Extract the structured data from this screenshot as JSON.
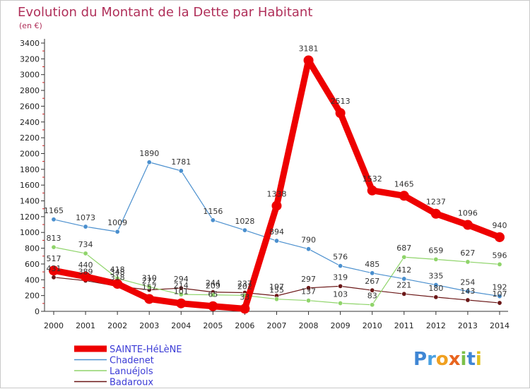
{
  "chart_data": {
    "type": "line",
    "title": "Evolution du Montant de la Dette par Habitant",
    "subtitle": "(en €)",
    "xlabel": "",
    "ylabel": "",
    "x": [
      "2000",
      "2001",
      "2002",
      "2003",
      "2004",
      "2005",
      "2006",
      "2007",
      "2008",
      "2009",
      "2010",
      "2011",
      "2012",
      "2013",
      "2014"
    ],
    "ylim": [
      0,
      3400
    ],
    "yticks": [
      0,
      200,
      400,
      600,
      800,
      1000,
      1200,
      1400,
      1600,
      1800,
      2000,
      2200,
      2400,
      2600,
      2800,
      3000,
      3200,
      3400
    ],
    "grid": false,
    "legend_position": "bottom-left",
    "series": [
      {
        "name": "SAINTE-HéLèNE",
        "color": "#ee0000",
        "values": [
          517,
          440,
          348,
          157,
          101,
          65,
          33,
          1338,
          3181,
          2513,
          1532,
          1465,
          1237,
          1096,
          940
        ]
      },
      {
        "name": "Chadenet",
        "color": "#4a8fce",
        "values": [
          1165,
          1073,
          1009,
          1890,
          1781,
          1156,
          1028,
          894,
          790,
          576,
          485,
          412,
          335,
          254,
          192
        ]
      },
      {
        "name": "Lanuéjols",
        "color": "#8fd46a",
        "values": [
          813,
          734,
          418,
          310,
          214,
          209,
          202,
          155,
          137,
          103,
          83,
          687,
          659,
          627,
          596
        ]
      },
      {
        "name": "Badaroux",
        "color": "#6b1717",
        "values": [
          431,
          389,
          318,
          272,
          294,
          244,
          237,
          197,
          297,
          319,
          267,
          221,
          180,
          143,
          107
        ]
      }
    ]
  },
  "watermark": {
    "letters": [
      "P",
      "r",
      "o",
      "x",
      "i",
      "t",
      "i"
    ]
  }
}
